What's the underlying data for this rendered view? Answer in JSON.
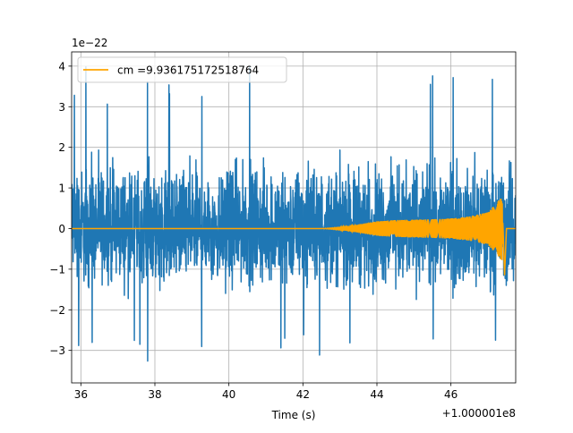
{
  "chart_data": {
    "type": "line",
    "title": "",
    "xlabel": "Time (s)",
    "ylabel": "",
    "x_offset_label": "+1.000001e8",
    "y_scale_label": "1e−22",
    "xlim": [
      35.75,
      47.75
    ],
    "ylim": [
      -3.8,
      4.35
    ],
    "x_ticks": [
      36,
      38,
      40,
      42,
      44,
      46
    ],
    "x_tick_labels": [
      "36",
      "38",
      "40",
      "42",
      "44",
      "46"
    ],
    "y_ticks": [
      -3,
      -2,
      -1,
      0,
      1,
      2,
      3,
      4
    ],
    "y_tick_labels": [
      "−3",
      "−2",
      "−1",
      "0",
      "1",
      "2",
      "3",
      "4"
    ],
    "grid": true,
    "legend": {
      "placement": "top-left"
    },
    "series": [
      {
        "name": "",
        "color": "#1f77b4",
        "kind": "noise",
        "x_range": [
          35.75,
          47.75
        ],
        "typical_amplitude": [
          -1.9,
          2.1
        ],
        "extreme_amplitude": [
          -3.4,
          4.0
        ]
      },
      {
        "name": "cm =9.936175172518764",
        "color": "#ffa500",
        "kind": "chirp",
        "envelope": [
          {
            "x": 35.75,
            "y": 0.0
          },
          {
            "x": 42.5,
            "y": 0.0
          },
          {
            "x": 43.0,
            "y": 0.03
          },
          {
            "x": 43.5,
            "y": 0.1
          },
          {
            "x": 44.0,
            "y": 0.18
          },
          {
            "x": 44.5,
            "y": 0.21
          },
          {
            "x": 45.0,
            "y": 0.22
          },
          {
            "x": 45.5,
            "y": 0.23
          },
          {
            "x": 46.0,
            "y": 0.25
          },
          {
            "x": 46.5,
            "y": 0.3
          },
          {
            "x": 47.0,
            "y": 0.4
          },
          {
            "x": 47.25,
            "y": 0.65
          },
          {
            "x": 47.38,
            "y": 0.8
          },
          {
            "x": 47.45,
            "y": -1.15
          },
          {
            "x": 47.5,
            "y": 0.0
          },
          {
            "x": 47.75,
            "y": 0.0
          }
        ]
      }
    ]
  }
}
